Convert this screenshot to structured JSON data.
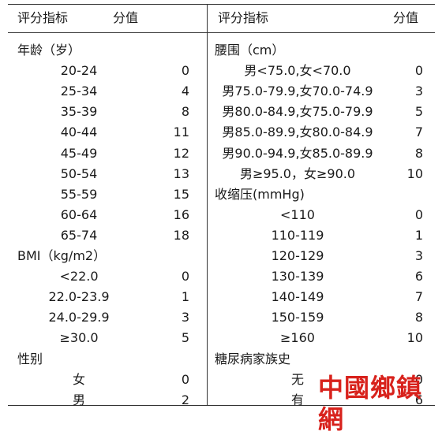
{
  "left_header": {
    "indicator": "评分指标",
    "score": "分值"
  },
  "right_header": {
    "indicator": "评分指标",
    "score": "分值"
  },
  "left_rows": [
    {
      "kind": "section",
      "label": "年龄（岁）"
    },
    {
      "kind": "item",
      "label": "20-24",
      "value": "0"
    },
    {
      "kind": "item",
      "label": "25-34",
      "value": "4"
    },
    {
      "kind": "item",
      "label": "35-39",
      "value": "8"
    },
    {
      "kind": "item",
      "label": "40-44",
      "value": "11"
    },
    {
      "kind": "item",
      "label": "45-49",
      "value": "12"
    },
    {
      "kind": "item",
      "label": "50-54",
      "value": "13"
    },
    {
      "kind": "item",
      "label": "55-59",
      "value": "15"
    },
    {
      "kind": "item",
      "label": "60-64",
      "value": "16"
    },
    {
      "kind": "item",
      "label": "65-74",
      "value": "18"
    },
    {
      "kind": "section",
      "label": "BMI（kg/m2）"
    },
    {
      "kind": "item",
      "label": "<22.0",
      "value": "0"
    },
    {
      "kind": "item",
      "label": "22.0-23.9",
      "value": "1"
    },
    {
      "kind": "item",
      "label": "24.0-29.9",
      "value": "3"
    },
    {
      "kind": "item",
      "label": "≥30.0",
      "value": "5"
    },
    {
      "kind": "section",
      "label": "性别"
    },
    {
      "kind": "item",
      "label": "女",
      "value": "0"
    },
    {
      "kind": "item",
      "label": "男",
      "value": "2"
    }
  ],
  "right_rows": [
    {
      "kind": "section",
      "label": "腰围（cm）"
    },
    {
      "kind": "item",
      "label": "男<75.0,女<70.0",
      "value": "0"
    },
    {
      "kind": "item",
      "label": "男75.0-79.9,女70.0-74.9",
      "value": "3"
    },
    {
      "kind": "item",
      "label": "男80.0-84.9,女75.0-79.9",
      "value": "5"
    },
    {
      "kind": "item",
      "label": "男85.0-89.9,女80.0-84.9",
      "value": "7"
    },
    {
      "kind": "item",
      "label": "男90.0-94.9,女85.0-89.9",
      "value": "8"
    },
    {
      "kind": "item",
      "label": "男≥95.0，女≥90.0",
      "value": "10"
    },
    {
      "kind": "section",
      "label": "收缩压(mmHg)"
    },
    {
      "kind": "item",
      "label": "<110",
      "value": "0"
    },
    {
      "kind": "item",
      "label": "110-119",
      "value": "1"
    },
    {
      "kind": "item",
      "label": "120-129",
      "value": "3"
    },
    {
      "kind": "item",
      "label": "130-139",
      "value": "6"
    },
    {
      "kind": "item",
      "label": "140-149",
      "value": "7"
    },
    {
      "kind": "item",
      "label": "150-159",
      "value": "8"
    },
    {
      "kind": "item",
      "label": "≥160",
      "value": "10"
    },
    {
      "kind": "section",
      "label": "糖尿病家族史"
    },
    {
      "kind": "item",
      "label": "无",
      "value": "0"
    },
    {
      "kind": "item",
      "label": "有",
      "value": "6"
    }
  ],
  "watermark": "中國鄉鎮網"
}
